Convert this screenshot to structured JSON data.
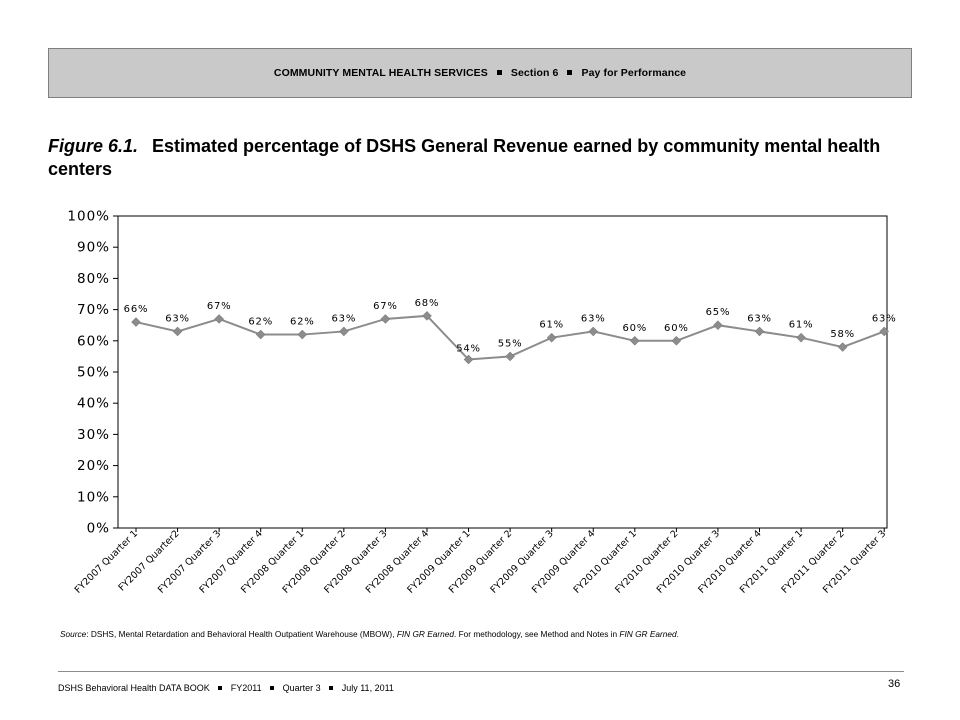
{
  "header": {
    "parts": [
      "COMMUNITY MENTAL HEALTH SERVICES",
      "Section 6",
      "Pay for Performance"
    ]
  },
  "figure": {
    "label": "Figure 6.1.",
    "title": "Estimated percentage of DSHS General Revenue earned by community mental health centers"
  },
  "chart_data": {
    "type": "line",
    "categories": [
      "FY2007 Quarter 1",
      "FY2007 Quarter2",
      "FY2007 Quarter 3",
      "FY2007 Quarter 4",
      "FY2008 Quarter 1",
      "FY2008 Quarter 2",
      "FY2008 Quarter 3",
      "FY2008 Quarter 4",
      "FY2009 Quarter 1",
      "FY2009 Quarter 2",
      "FY2009 Quarter 3",
      "FY2009 Quarter 4",
      "FY2010 Quarter 1",
      "FY2010 Quarter 2",
      "FY2010 Quarter 3",
      "FY2010 Quarter 4",
      "FY2011 Quarter 1",
      "FY2011 Quarter 2",
      "FY2011 Quarter 3"
    ],
    "series": [
      {
        "values": [
          66,
          63,
          67,
          62,
          62,
          63,
          67,
          68,
          54,
          55,
          61,
          63,
          60,
          60,
          65,
          63,
          61,
          58,
          63
        ]
      }
    ],
    "data_labels": [
      "66%",
      "63%",
      "67%",
      "62%",
      "62%",
      "63%",
      "67%",
      "68%",
      "54%",
      "55%",
      "61%",
      "63%",
      "60%",
      "60%",
      "65%",
      "63%",
      "61%",
      "58%",
      "63%"
    ],
    "yticks": [
      "0%",
      "10%",
      "20%",
      "30%",
      "40%",
      "50%",
      "60%",
      "70%",
      "80%",
      "90%",
      "100%"
    ],
    "ylim": [
      0,
      100
    ],
    "title": "",
    "xlabel": "",
    "ylabel": "",
    "grid": false,
    "legend": "none",
    "line_color": "#8c8c8c",
    "marker_color": "#8c8c8c",
    "marker": "diamond"
  },
  "source": {
    "label": "Source",
    "text_before": ": DSHS, Mental Retardation and Behavioral Health Outpatient Warehouse (MBOW), ",
    "italic_1": "FIN GR Earned",
    "text_middle": ". For methodology, see Method and Notes in ",
    "italic_2": "FIN GR Earned",
    "text_after": "."
  },
  "footer": {
    "parts": [
      "DSHS Behavioral Health DATA BOOK",
      "FY2011",
      "Quarter 3",
      "July 11, 2011"
    ],
    "page_number": "36"
  }
}
